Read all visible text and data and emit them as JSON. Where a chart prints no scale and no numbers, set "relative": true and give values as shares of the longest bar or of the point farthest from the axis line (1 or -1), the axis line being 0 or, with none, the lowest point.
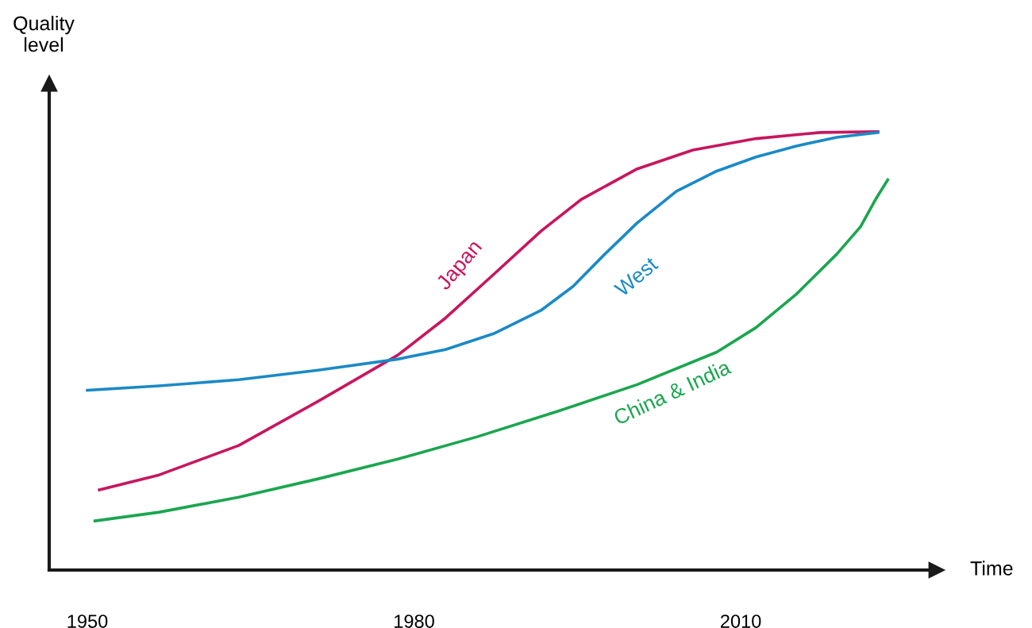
{
  "chart_data": {
    "type": "line",
    "relative": true,
    "xlabel": "Time",
    "ylabel": "Quality level",
    "xlim": [
      1946.5,
      2028
    ],
    "xticks": [
      1950,
      1980,
      2010
    ],
    "tick_labels": "x",
    "grid": false,
    "legend": false,
    "marker": "none",
    "line_style": "solid",
    "series": [
      {
        "name": "Japan",
        "color": "#c8165e",
        "x": [
          1951.1,
          1956.6,
          1963.9,
          1971.2,
          1978.5,
          1982.9,
          1987.3,
          1991.7,
          1995.4,
          2000.5,
          2005.6,
          2011.4,
          2017.3,
          2022.6
        ],
        "values": [
          0.183,
          0.217,
          0.284,
          0.385,
          0.49,
          0.575,
          0.674,
          0.774,
          0.846,
          0.915,
          0.958,
          0.984,
          0.998,
          1.0
        ]
      },
      {
        "name": "West",
        "color": "#1a8ac6",
        "x": [
          1950,
          1956.6,
          1963.9,
          1971.2,
          1978.5,
          1982.9,
          1987.3,
          1991.7,
          1994.6,
          1997.5,
          2000.5,
          2004.1,
          2007.8,
          2011.4,
          2015.1,
          2018.8,
          2022.6
        ],
        "values": [
          0.41,
          0.42,
          0.434,
          0.456,
          0.481,
          0.503,
          0.539,
          0.593,
          0.647,
          0.72,
          0.792,
          0.864,
          0.91,
          0.942,
          0.967,
          0.987,
          0.998
        ]
      },
      {
        "name": "China & India",
        "color": "#1aa64f",
        "x": [
          1950.7,
          1956.6,
          1963.9,
          1971.2,
          1978.5,
          1985.8,
          1993.2,
          2000.5,
          2007.8,
          2011.4,
          2015.1,
          2018.8,
          2021,
          2022.4,
          2023.5
        ],
        "values": [
          0.112,
          0.132,
          0.166,
          0.208,
          0.253,
          0.304,
          0.362,
          0.423,
          0.497,
          0.553,
          0.629,
          0.72,
          0.783,
          0.846,
          0.89
        ]
      }
    ]
  }
}
